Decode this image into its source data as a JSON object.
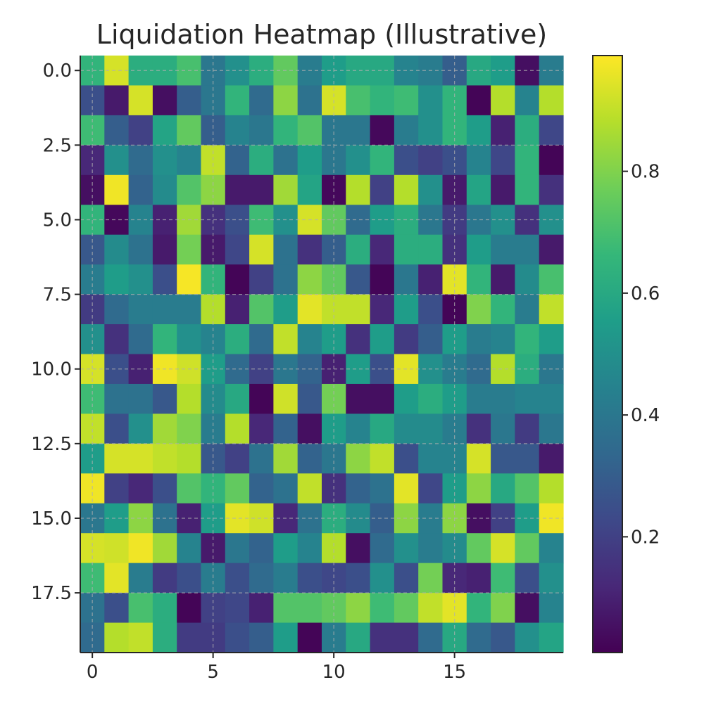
{
  "chart_data": {
    "type": "heatmap",
    "title": "Liquidation Heatmap (Illustrative)",
    "xlabel": "",
    "ylabel": "",
    "x_ticks": [
      {
        "value": 0,
        "label": "0"
      },
      {
        "value": 5,
        "label": "5"
      },
      {
        "value": 10,
        "label": "10"
      },
      {
        "value": 15,
        "label": "15"
      }
    ],
    "y_ticks": [
      {
        "value": 0,
        "label": "0.0"
      },
      {
        "value": 2.5,
        "label": "2.5"
      },
      {
        "value": 5,
        "label": "5.0"
      },
      {
        "value": 7.5,
        "label": "7.5"
      },
      {
        "value": 10,
        "label": "10.0"
      },
      {
        "value": 12.5,
        "label": "12.5"
      },
      {
        "value": 15,
        "label": "15.0"
      },
      {
        "value": 17.5,
        "label": "17.5"
      }
    ],
    "xlim": [
      -0.5,
      19.5
    ],
    "ylim": [
      19.5,
      -0.5
    ],
    "y_axis_inverted": true,
    "grid": true,
    "colormap": "viridis",
    "colorbar": {
      "range": [
        0.01,
        0.99
      ],
      "ticks": [
        {
          "value": 0.2,
          "label": "0.2"
        },
        {
          "value": 0.4,
          "label": "0.4"
        },
        {
          "value": 0.6,
          "label": "0.6"
        },
        {
          "value": 0.8,
          "label": "0.8"
        }
      ]
    },
    "colors": {
      "viridis": [
        "#440154",
        "#482878",
        "#3e4989",
        "#31688e",
        "#26828e",
        "#1f9e89",
        "#35b779",
        "#6ece58",
        "#b5de2b",
        "#fde725"
      ],
      "grid": "#b0b0b0",
      "axis": "#262626"
    },
    "values": [
      [
        0.65,
        0.93,
        0.62,
        0.62,
        0.7,
        0.4,
        0.5,
        0.62,
        0.75,
        0.42,
        0.55,
        0.6,
        0.6,
        0.45,
        0.42,
        0.3,
        0.6,
        0.55,
        0.05,
        0.42
      ],
      [
        0.25,
        0.08,
        0.93,
        0.05,
        0.3,
        0.4,
        0.65,
        0.35,
        0.82,
        0.38,
        0.93,
        0.7,
        0.65,
        0.68,
        0.5,
        0.65,
        0.02,
        0.88,
        0.45,
        0.88
      ],
      [
        0.68,
        0.3,
        0.2,
        0.58,
        0.75,
        0.3,
        0.45,
        0.4,
        0.65,
        0.72,
        0.4,
        0.4,
        0.03,
        0.42,
        0.5,
        0.65,
        0.55,
        0.1,
        0.62,
        0.22
      ],
      [
        0.12,
        0.5,
        0.35,
        0.5,
        0.45,
        0.9,
        0.32,
        0.62,
        0.38,
        0.55,
        0.4,
        0.5,
        0.65,
        0.25,
        0.2,
        0.25,
        0.45,
        0.22,
        0.65,
        0.02
      ],
      [
        0.05,
        0.97,
        0.32,
        0.48,
        0.72,
        0.82,
        0.08,
        0.08,
        0.85,
        0.58,
        0.03,
        0.88,
        0.2,
        0.88,
        0.5,
        0.08,
        0.58,
        0.08,
        0.65,
        0.15
      ],
      [
        0.65,
        0.03,
        0.45,
        0.1,
        0.85,
        0.15,
        0.25,
        0.68,
        0.5,
        0.93,
        0.75,
        0.35,
        0.55,
        0.62,
        0.4,
        0.18,
        0.4,
        0.5,
        0.15,
        0.5
      ],
      [
        0.28,
        0.48,
        0.38,
        0.08,
        0.78,
        0.08,
        0.22,
        0.93,
        0.38,
        0.15,
        0.3,
        0.62,
        0.12,
        0.62,
        0.62,
        0.15,
        0.55,
        0.42,
        0.42,
        0.08
      ],
      [
        0.42,
        0.55,
        0.5,
        0.25,
        0.98,
        0.65,
        0.02,
        0.2,
        0.38,
        0.82,
        0.75,
        0.28,
        0.02,
        0.4,
        0.1,
        0.95,
        0.65,
        0.08,
        0.48,
        0.7
      ],
      [
        0.18,
        0.35,
        0.42,
        0.42,
        0.42,
        0.88,
        0.1,
        0.72,
        0.55,
        0.95,
        0.9,
        0.9,
        0.12,
        0.55,
        0.25,
        0.02,
        0.8,
        0.65,
        0.42,
        0.9
      ],
      [
        0.5,
        0.15,
        0.35,
        0.65,
        0.5,
        0.45,
        0.62,
        0.35,
        0.9,
        0.45,
        0.55,
        0.15,
        0.55,
        0.18,
        0.3,
        0.55,
        0.42,
        0.45,
        0.65,
        0.55
      ],
      [
        0.93,
        0.25,
        0.1,
        0.97,
        0.92,
        0.55,
        0.35,
        0.2,
        0.4,
        0.32,
        0.1,
        0.55,
        0.25,
        0.95,
        0.5,
        0.42,
        0.35,
        0.88,
        0.62,
        0.4
      ],
      [
        0.68,
        0.38,
        0.38,
        0.28,
        0.88,
        0.48,
        0.6,
        0.02,
        0.92,
        0.28,
        0.78,
        0.05,
        0.05,
        0.55,
        0.62,
        0.55,
        0.42,
        0.42,
        0.45,
        0.45
      ],
      [
        0.9,
        0.25,
        0.5,
        0.85,
        0.8,
        0.42,
        0.88,
        0.12,
        0.32,
        0.05,
        0.55,
        0.45,
        0.6,
        0.48,
        0.48,
        0.42,
        0.15,
        0.4,
        0.18,
        0.4
      ],
      [
        0.55,
        0.93,
        0.93,
        0.9,
        0.88,
        0.28,
        0.2,
        0.38,
        0.85,
        0.32,
        0.4,
        0.82,
        0.9,
        0.25,
        0.45,
        0.45,
        0.93,
        0.28,
        0.28,
        0.08
      ],
      [
        0.97,
        0.2,
        0.12,
        0.25,
        0.72,
        0.65,
        0.75,
        0.32,
        0.38,
        0.9,
        0.15,
        0.32,
        0.38,
        0.95,
        0.22,
        0.55,
        0.82,
        0.6,
        0.72,
        0.88
      ],
      [
        0.4,
        0.55,
        0.82,
        0.38,
        0.1,
        0.55,
        0.95,
        0.92,
        0.12,
        0.38,
        0.62,
        0.48,
        0.3,
        0.82,
        0.42,
        0.82,
        0.05,
        0.2,
        0.55,
        0.97
      ],
      [
        0.93,
        0.92,
        0.97,
        0.85,
        0.45,
        0.08,
        0.4,
        0.32,
        0.55,
        0.45,
        0.88,
        0.05,
        0.35,
        0.5,
        0.42,
        0.48,
        0.75,
        0.93,
        0.75,
        0.45
      ],
      [
        0.68,
        0.95,
        0.42,
        0.18,
        0.25,
        0.42,
        0.25,
        0.35,
        0.42,
        0.25,
        0.22,
        0.25,
        0.5,
        0.25,
        0.78,
        0.12,
        0.1,
        0.68,
        0.25,
        0.5
      ],
      [
        0.38,
        0.25,
        0.7,
        0.62,
        0.02,
        0.2,
        0.22,
        0.1,
        0.72,
        0.72,
        0.75,
        0.82,
        0.68,
        0.75,
        0.9,
        0.95,
        0.65,
        0.8,
        0.05,
        0.45
      ],
      [
        0.35,
        0.88,
        0.9,
        0.62,
        0.18,
        0.18,
        0.25,
        0.3,
        0.55,
        0.02,
        0.42,
        0.6,
        0.15,
        0.15,
        0.35,
        0.6,
        0.35,
        0.28,
        0.5,
        0.58
      ]
    ]
  }
}
